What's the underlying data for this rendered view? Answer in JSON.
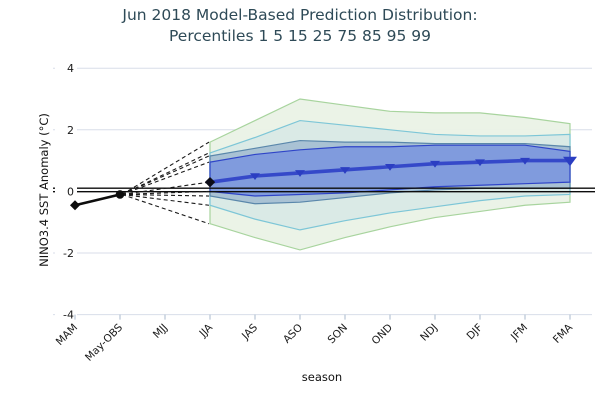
{
  "title": {
    "line1": "Jun 2018 Model-Based Prediction Distribution:",
    "line2": "Percentiles 1 5 15 25 75 85 95 99"
  },
  "colors": {
    "title_text": "#2e4a57",
    "axis_text": "#1a1a1a",
    "gridline": "#d8dee9",
    "zero_line": "#0c0c0c",
    "observation": "#0d0d0d",
    "median_line": "#3549c9",
    "median_marker": "#2b3ec2"
  },
  "chart_data": {
    "type": "area",
    "title": "Jun 2018 Model-Based Prediction Distribution: Percentiles 1 5 15 25 75 85 95 99",
    "xlabel": "season",
    "ylabel": "NINO3.4 SST Anomaly (°C)",
    "ylim": [
      -4,
      4
    ],
    "y_ticks": [
      4,
      2,
      0,
      -2,
      -4
    ],
    "grid": "horizontal",
    "legend": "none",
    "categories": [
      "MAM",
      "May-OBS",
      "MJJ",
      "JJA",
      "JAS",
      "ASO",
      "SON",
      "OND",
      "NDJ",
      "DJF",
      "JFM",
      "FMA"
    ],
    "observed": {
      "name": "observed NINO3.4 anomaly",
      "categories": [
        "MAM",
        "May-OBS"
      ],
      "values": [
        -0.45,
        -0.1
      ]
    },
    "forecast_categories": [
      "JJA",
      "JAS",
      "ASO",
      "SON",
      "OND",
      "NDJ",
      "DJF",
      "JFM",
      "FMA"
    ],
    "median": {
      "name": "forecast median",
      "values": [
        0.3,
        0.5,
        0.6,
        0.7,
        0.8,
        0.9,
        0.95,
        1.0,
        1.0
      ]
    },
    "percentiles_shaded": [
      1,
      5,
      15,
      25,
      75,
      85,
      95,
      99
    ],
    "bands": [
      {
        "name": "p1-p99",
        "lower": [
          -1.05,
          -1.5,
          -1.9,
          -1.5,
          -1.15,
          -0.85,
          -0.65,
          -0.45,
          -0.35
        ],
        "upper": [
          1.6,
          2.3,
          3.0,
          2.8,
          2.6,
          2.55,
          2.55,
          2.4,
          2.2
        ],
        "fill": "#eaf3e6",
        "stroke": "#a8d49e"
      },
      {
        "name": "p5-p95",
        "lower": [
          -0.45,
          -0.9,
          -1.25,
          -0.95,
          -0.7,
          -0.5,
          -0.3,
          -0.15,
          -0.1
        ],
        "upper": [
          1.25,
          1.75,
          2.3,
          2.15,
          2.0,
          1.85,
          1.8,
          1.8,
          1.85
        ],
        "fill": "#d9e9e6",
        "stroke": "#7dc6d7"
      },
      {
        "name": "p15-p85",
        "lower": [
          -0.15,
          -0.4,
          -0.35,
          -0.2,
          -0.05,
          0.05,
          0.1,
          0.1,
          0.1
        ],
        "upper": [
          1.15,
          1.4,
          1.65,
          1.6,
          1.6,
          1.55,
          1.55,
          1.55,
          1.45
        ],
        "fill": "#a7c0d3",
        "stroke": "#5a87ab"
      },
      {
        "name": "p25-p75",
        "lower": [
          0.0,
          -0.15,
          -0.1,
          -0.05,
          0.05,
          0.15,
          0.2,
          0.25,
          0.3
        ],
        "upper": [
          0.95,
          1.2,
          1.35,
          1.45,
          1.45,
          1.5,
          1.5,
          1.5,
          1.3
        ],
        "fill": "#7e99dd",
        "stroke": "#2f45c8"
      }
    ],
    "fan_from_observation": true,
    "zero_reference": "double black horizontal line at 0"
  }
}
